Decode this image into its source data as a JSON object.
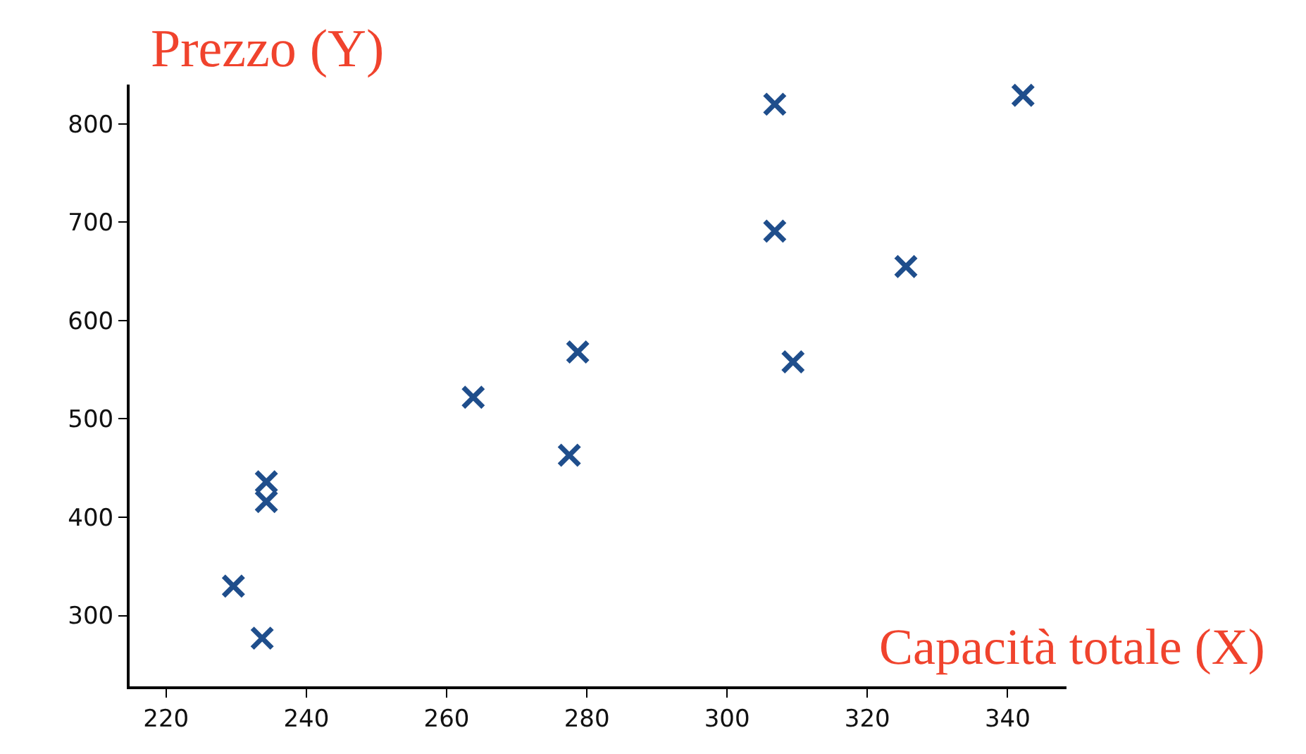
{
  "chart_data": {
    "type": "scatter",
    "xlabel": "Capacità totale (X)",
    "ylabel": "Prezzo (Y)",
    "x": [
      229.6,
      233.7,
      234.3,
      234.3,
      263.8,
      277.5,
      278.7,
      306.8,
      306.8,
      309.4,
      325.5,
      342.2
    ],
    "values": [
      330,
      277,
      416,
      436,
      522,
      463,
      568,
      820,
      691,
      558,
      655,
      829
    ],
    "color": "#1f4e8c",
    "marker": "cross",
    "grid": false,
    "xlim": [
      214.8,
      348.4
    ],
    "ylim": [
      228,
      840
    ],
    "xticks": [
      220,
      240,
      260,
      280,
      300,
      320,
      340
    ],
    "yticks": [
      300,
      400,
      500,
      600,
      700,
      800
    ]
  }
}
